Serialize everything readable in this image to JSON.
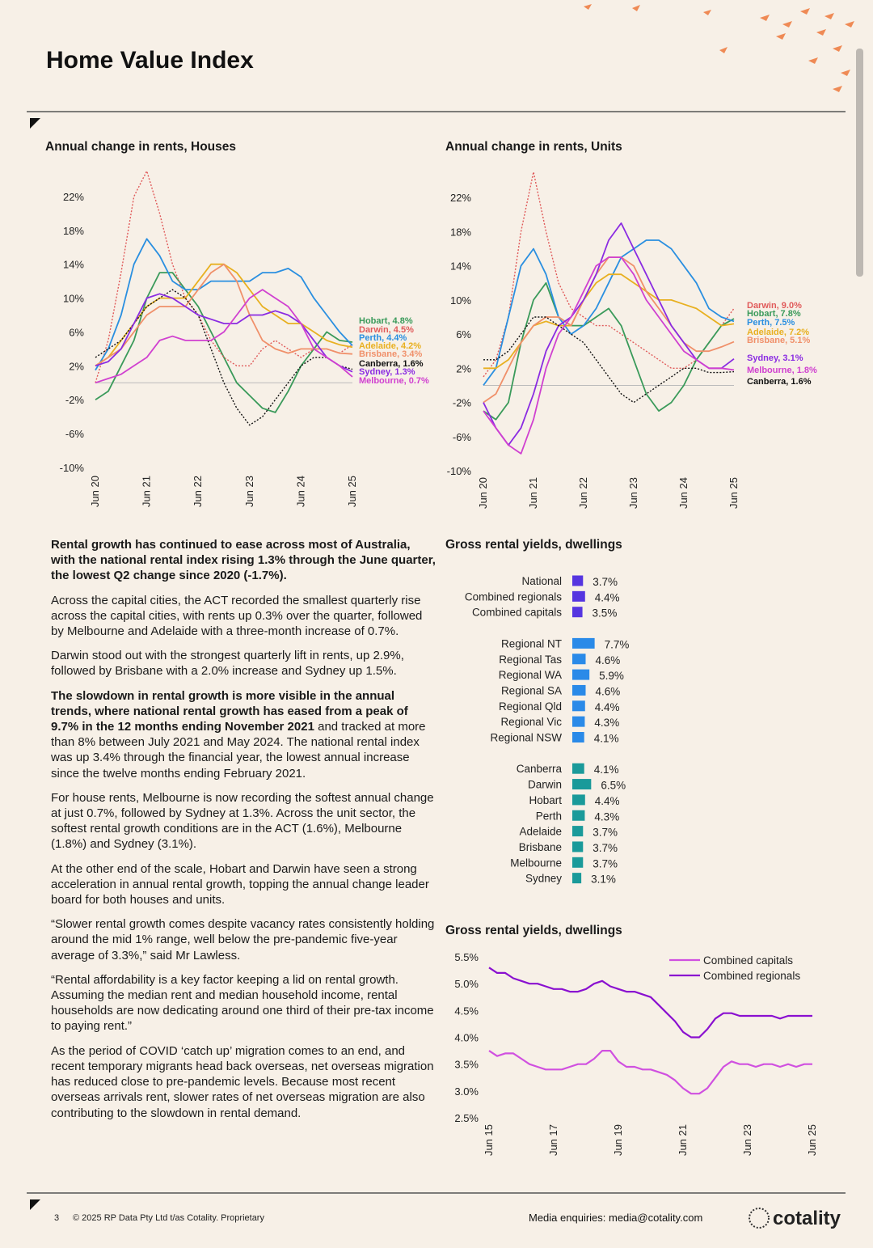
{
  "header": {
    "title": "Home Value Index"
  },
  "chart_data": [
    {
      "type": "line",
      "title": "Annual change in rents, Houses",
      "categories": [
        "Jun 20",
        null,
        null,
        null,
        "Jun 21",
        null,
        null,
        null,
        "Jun 22",
        null,
        null,
        null,
        "Jun 23",
        null,
        null,
        null,
        "Jun 24",
        null,
        null,
        null,
        "Jun 25"
      ],
      "ylim": [
        -10,
        26
      ],
      "yticks": [
        {
          "value": 22,
          "label": "22%"
        },
        {
          "value": 18,
          "label": "18%"
        },
        {
          "value": 14,
          "label": "14%"
        },
        {
          "value": 10,
          "label": "10%"
        },
        {
          "value": 6,
          "label": "6%"
        },
        {
          "value": 2,
          "label": "2%"
        },
        {
          "value": -2,
          "label": "-2%"
        },
        {
          "value": -6,
          "label": "-6%"
        },
        {
          "value": -10,
          "label": "-10%"
        }
      ],
      "series": [
        {
          "name": "Hobart, 4.8%",
          "color": "#3a9a5a",
          "values": [
            -2,
            -1,
            2,
            5,
            10,
            13,
            13,
            11,
            9,
            6,
            3,
            0,
            -1.5,
            -3,
            -3.5,
            -1,
            2,
            4,
            6,
            5,
            4.8
          ]
        },
        {
          "name": "Darwin, 4.5%",
          "color": "#e05a5a",
          "style": "dotted",
          "values": [
            0,
            5,
            13,
            22,
            25,
            20,
            14,
            10,
            8,
            5,
            3,
            2,
            2,
            4,
            5,
            4,
            3,
            4,
            4,
            3.5,
            4.5
          ]
        },
        {
          "name": "Perth, 4.4%",
          "color": "#2a8fe0",
          "values": [
            1.5,
            4,
            8,
            14,
            17,
            15,
            12,
            11,
            11,
            12,
            12,
            12,
            12,
            13,
            13,
            13.5,
            12.5,
            10,
            8,
            6,
            4.4
          ]
        },
        {
          "name": "Adelaide, 4.2%",
          "color": "#e8b020",
          "values": [
            2,
            3,
            5,
            7,
            9,
            10,
            10,
            10,
            12,
            14,
            14,
            13,
            11,
            9,
            8,
            7,
            7,
            6,
            5,
            4.5,
            4.2
          ]
        },
        {
          "name": "Brisbane, 3.4%",
          "color": "#f0906a",
          "values": [
            2,
            3,
            4,
            6,
            8,
            9,
            9,
            9,
            11,
            13,
            14,
            12,
            8,
            5,
            4,
            3.5,
            4,
            4,
            4,
            3.5,
            3.4
          ]
        },
        {
          "name": "Canberra, 1.6%",
          "color": "#111111",
          "style": "dotted",
          "values": [
            3,
            4,
            5,
            7,
            9,
            10,
            11,
            10,
            8,
            4,
            0,
            -3,
            -5,
            -4,
            -2,
            0,
            2,
            3,
            3,
            2,
            1.6
          ]
        },
        {
          "name": "Sydney, 1.3%",
          "color": "#8a2be2",
          "values": [
            2,
            2.5,
            4,
            7,
            10,
            10.5,
            10,
            9,
            8,
            7.5,
            7,
            7,
            8,
            8,
            8.5,
            8,
            7,
            5,
            3,
            2,
            1.3
          ]
        },
        {
          "name": "Melbourne, 0.7%",
          "color": "#d040d0",
          "values": [
            0,
            0.5,
            1,
            2,
            3,
            5,
            5.5,
            5,
            5,
            5,
            6,
            8,
            10,
            11,
            10,
            9,
            7,
            4,
            3,
            2,
            0.7
          ]
        }
      ]
    },
    {
      "type": "line",
      "title": "Annual change in rents, Units",
      "categories": [
        "Jun 20",
        null,
        null,
        null,
        "Jun 21",
        null,
        null,
        null,
        "Jun 22",
        null,
        null,
        null,
        "Jun 23",
        null,
        null,
        null,
        "Jun 24",
        null,
        null,
        null,
        "Jun 25"
      ],
      "ylim": [
        -10,
        26
      ],
      "yticks": [
        {
          "value": 22,
          "label": "22%"
        },
        {
          "value": 18,
          "label": "18%"
        },
        {
          "value": 14,
          "label": "14%"
        },
        {
          "value": 10,
          "label": "10%"
        },
        {
          "value": 6,
          "label": "6%"
        },
        {
          "value": 2,
          "label": "2%"
        },
        {
          "value": -2,
          "label": "-2%"
        },
        {
          "value": -6,
          "label": "-6%"
        },
        {
          "value": -10,
          "label": "-10%"
        }
      ],
      "series": [
        {
          "name": "Darwin, 9.0%",
          "color": "#e05a5a",
          "style": "dotted",
          "values": [
            1,
            3,
            8,
            18,
            25,
            18,
            12,
            9,
            8,
            7,
            7,
            6,
            5,
            4,
            3,
            2,
            2,
            3,
            5,
            7,
            9.0
          ]
        },
        {
          "name": "Hobart, 7.8%",
          "color": "#3a9a5a",
          "values": [
            -3,
            -4,
            -2,
            5,
            10,
            12,
            8,
            7,
            7,
            8,
            9,
            7,
            3,
            -1,
            -3,
            -2,
            0,
            3,
            5,
            7,
            7.8
          ]
        },
        {
          "name": "Perth, 7.5%",
          "color": "#2a8fe0",
          "values": [
            0,
            2,
            8,
            14,
            16,
            13,
            8,
            6,
            7,
            9,
            12,
            15,
            16,
            17,
            17,
            16,
            14,
            12,
            9,
            8,
            7.5
          ]
        },
        {
          "name": "Adelaide, 7.2%",
          "color": "#e8b020",
          "values": [
            2,
            2,
            3,
            5,
            7,
            7.5,
            7,
            7,
            10,
            12,
            13,
            13,
            12,
            11,
            10,
            10,
            9.5,
            9,
            8,
            7,
            7.2
          ]
        },
        {
          "name": "Brisbane, 5.1%",
          "color": "#f0906a",
          "values": [
            -2,
            -1,
            2,
            5,
            7,
            8,
            8,
            7,
            10,
            13,
            15,
            15,
            14,
            11,
            9,
            7,
            5,
            4,
            4,
            4.5,
            5.1
          ]
        },
        {
          "name": "Sydney, 3.1%",
          "color": "#8a2be2",
          "values": [
            -2,
            -5,
            -7,
            -5,
            -1,
            4,
            7,
            8,
            10,
            13,
            17,
            19,
            16,
            13,
            10,
            7,
            5,
            3,
            2,
            2,
            3.1
          ]
        },
        {
          "name": "Melbourne, 1.8%",
          "color": "#d040d0",
          "values": [
            -3,
            -5,
            -7,
            -8,
            -4,
            2,
            6,
            8,
            11,
            14,
            15,
            15,
            13,
            10,
            8,
            6,
            4,
            3,
            2,
            2,
            1.8
          ]
        },
        {
          "name": "Canberra, 1.6%",
          "color": "#111111",
          "style": "dotted",
          "values": [
            3,
            3,
            4,
            6,
            8,
            8,
            7,
            6,
            5,
            3,
            1,
            -1,
            -2,
            -1,
            0,
            1,
            2,
            2,
            1.5,
            1.5,
            1.6
          ]
        }
      ]
    },
    {
      "type": "hbar",
      "title": "Gross rental yields, dwellings",
      "xlim": [
        0,
        8
      ],
      "categories": [
        "National",
        "Combined regionals",
        "Combined capitals",
        "Regional NT",
        "Regional Tas",
        "Regional WA",
        "Regional SA",
        "Regional Qld",
        "Regional Vic",
        "Regional NSW",
        "Canberra",
        "Darwin",
        "Hobart",
        "Perth",
        "Adelaide",
        "Brisbane",
        "Melbourne",
        "Sydney"
      ],
      "values": [
        3.7,
        4.4,
        3.5,
        7.7,
        4.6,
        5.9,
        4.6,
        4.4,
        4.3,
        4.1,
        4.1,
        6.5,
        4.4,
        4.3,
        3.7,
        3.7,
        3.7,
        3.1
      ],
      "value_labels": [
        "3.7%",
        "4.4%",
        "3.5%",
        "7.7%",
        "4.6%",
        "5.9%",
        "4.6%",
        "4.4%",
        "4.3%",
        "4.1%",
        "4.1%",
        "6.5%",
        "4.4%",
        "4.3%",
        "3.7%",
        "3.7%",
        "3.7%",
        "3.1%"
      ],
      "colors": [
        "#5535e0",
        "#5535e0",
        "#5535e0",
        "#2a8ae8",
        "#2a8ae8",
        "#2a8ae8",
        "#2a8ae8",
        "#2a8ae8",
        "#2a8ae8",
        "#2a8ae8",
        "#1a9a9a",
        "#1a9a9a",
        "#1a9a9a",
        "#1a9a9a",
        "#1a9a9a",
        "#1a9a9a",
        "#1a9a9a",
        "#1a9a9a"
      ]
    },
    {
      "type": "line",
      "title": "Gross rental yields, dwellings",
      "legend": "top-right",
      "categories": [
        "Jun 15",
        null,
        null,
        null,
        null,
        null,
        null,
        null,
        "Jun 17",
        null,
        null,
        null,
        null,
        null,
        null,
        null,
        "Jun 19",
        null,
        null,
        null,
        null,
        null,
        null,
        null,
        "Jun 21",
        null,
        null,
        null,
        null,
        null,
        null,
        null,
        "Jun 23",
        null,
        null,
        null,
        null,
        null,
        null,
        null,
        "Jun 25"
      ],
      "ylim": [
        2.5,
        5.5
      ],
      "yticks": [
        {
          "value": 5.5,
          "label": "5.5%"
        },
        {
          "value": 5.0,
          "label": "5.0%"
        },
        {
          "value": 4.5,
          "label": "4.5%"
        },
        {
          "value": 4.0,
          "label": "4.0%"
        },
        {
          "value": 3.5,
          "label": "3.5%"
        },
        {
          "value": 3.0,
          "label": "3.0%"
        },
        {
          "value": 2.5,
          "label": "2.5%"
        }
      ],
      "series": [
        {
          "name": "Combined capitals",
          "color": "#d050e0",
          "values": [
            3.75,
            3.65,
            3.7,
            3.7,
            3.6,
            3.5,
            3.45,
            3.4,
            3.4,
            3.4,
            3.45,
            3.5,
            3.5,
            3.6,
            3.75,
            3.75,
            3.55,
            3.45,
            3.45,
            3.4,
            3.4,
            3.35,
            3.3,
            3.2,
            3.05,
            2.95,
            2.95,
            3.05,
            3.25,
            3.45,
            3.55,
            3.5,
            3.5,
            3.45,
            3.5,
            3.5,
            3.45,
            3.5,
            3.45,
            3.5,
            3.5
          ]
        },
        {
          "name": "Combined regionals",
          "color": "#8a10d0",
          "values": [
            5.3,
            5.2,
            5.2,
            5.1,
            5.05,
            5.0,
            5.0,
            4.95,
            4.9,
            4.9,
            4.85,
            4.85,
            4.9,
            5.0,
            5.05,
            4.95,
            4.9,
            4.85,
            4.85,
            4.8,
            4.75,
            4.6,
            4.45,
            4.3,
            4.1,
            4.0,
            4.0,
            4.15,
            4.35,
            4.45,
            4.45,
            4.4,
            4.4,
            4.4,
            4.4,
            4.4,
            4.35,
            4.4,
            4.4,
            4.4,
            4.4
          ]
        }
      ]
    }
  ],
  "body": {
    "paragraphs": [
      {
        "bold": "Rental growth has continued to ease across most of Australia, with the national rental index rising 1.3% through the June quarter, the lowest Q2 change since 2020 (-1.7%)."
      },
      {
        "text": "Across the capital cities, the ACT recorded the smallest quarterly rise across the capital cities, with rents up 0.3% over the quarter, followed by Melbourne and Adelaide with a three-month increase of 0.7%."
      },
      {
        "text": "Darwin stood out with the strongest quarterly lift in rents, up 2.9%, followed by Brisbane with a 2.0% increase and Sydney up 1.5%."
      },
      {
        "bold": "The slowdown in rental growth is more visible in the annual trends, where national rental growth has eased from a peak of 9.7% in the 12 months ending November 2021",
        "text": " and tracked at more than 8% between July 2021 and May 2024.  The national rental index was up 3.4% through the financial year, the lowest annual increase since the twelve months ending February 2021."
      },
      {
        "text": "For house rents, Melbourne is now recording the softest annual change at just 0.7%, followed by Sydney at 1.3%. Across the unit sector, the softest rental growth conditions are in the ACT (1.6%), Melbourne (1.8%) and Sydney (3.1%)."
      },
      {
        "text": "At the other end of the scale, Hobart and Darwin have seen a strong acceleration in annual rental growth, topping the annual change leader board for both houses and units."
      },
      {
        "text": "“Slower rental growth comes despite vacancy rates consistently holding around the mid 1% range, well below the pre-pandemic five-year average of 3.3%,” said Mr Lawless."
      },
      {
        "text": "“Rental affordability is a key factor keeping a lid on rental growth. Assuming the median rent and median household income, rental households are now dedicating around one third of their pre-tax income to paying rent.”"
      },
      {
        "text": "As the period of COVID ‘catch up’ migration comes to an end, and recent temporary migrants head back overseas, net overseas migration has reduced close to pre-pandemic levels. Because most recent overseas arrivals rent, slower rates of net overseas migration are also contributing to the slowdown in rental demand."
      }
    ]
  },
  "footer": {
    "page": "3",
    "copyright": "© 2025 RP Data Pty Ltd t/as Cotality. Proprietary",
    "media": "Media enquiries: media@cotality.com",
    "logo": "cotality"
  }
}
